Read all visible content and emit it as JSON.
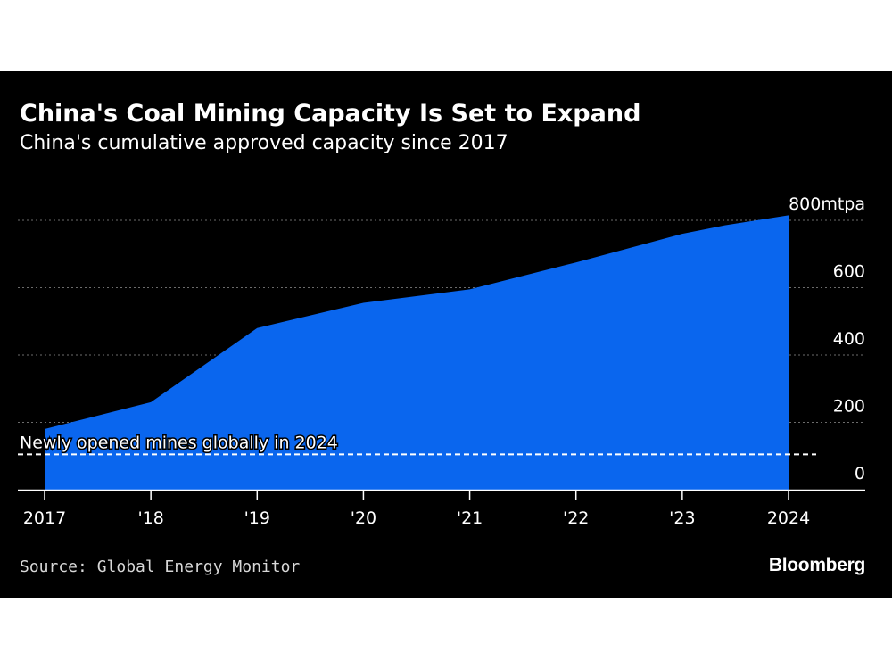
{
  "chart_data": {
    "type": "area",
    "title": "China's Coal Mining Capacity Is Set to Expand",
    "subtitle": "China's cumulative approved capacity since 2017",
    "x": [
      2017,
      2018,
      2019,
      2020,
      2021,
      2022,
      2023,
      2024
    ],
    "x_tick_labels": [
      "2017",
      "'18",
      "'19",
      "'20",
      "'21",
      "'22",
      "'23",
      "2024"
    ],
    "points": [
      {
        "x": 2017.0,
        "y": 180
      },
      {
        "x": 2018.0,
        "y": 260
      },
      {
        "x": 2019.0,
        "y": 480
      },
      {
        "x": 2020.0,
        "y": 555
      },
      {
        "x": 2021.0,
        "y": 595
      },
      {
        "x": 2022.0,
        "y": 675
      },
      {
        "x": 2023.0,
        "y": 760
      },
      {
        "x": 2023.4,
        "y": 785
      },
      {
        "x": 2024.0,
        "y": 815
      }
    ],
    "ylim": [
      0,
      800
    ],
    "y_ticks": [
      0,
      200,
      400,
      600,
      800
    ],
    "y_tick_labels": [
      "0",
      "200",
      "400",
      "600",
      "800mtpa"
    ],
    "grid": "horizontal dotted",
    "fill_color": "#0a66ee",
    "reference_line": {
      "y": 105,
      "label": "Newly opened mines globally in 2024",
      "style": "dashed",
      "color": "#ffffff"
    },
    "source": "Source: Global Energy Monitor"
  },
  "branding": {
    "logo_text": "Bloomberg"
  }
}
